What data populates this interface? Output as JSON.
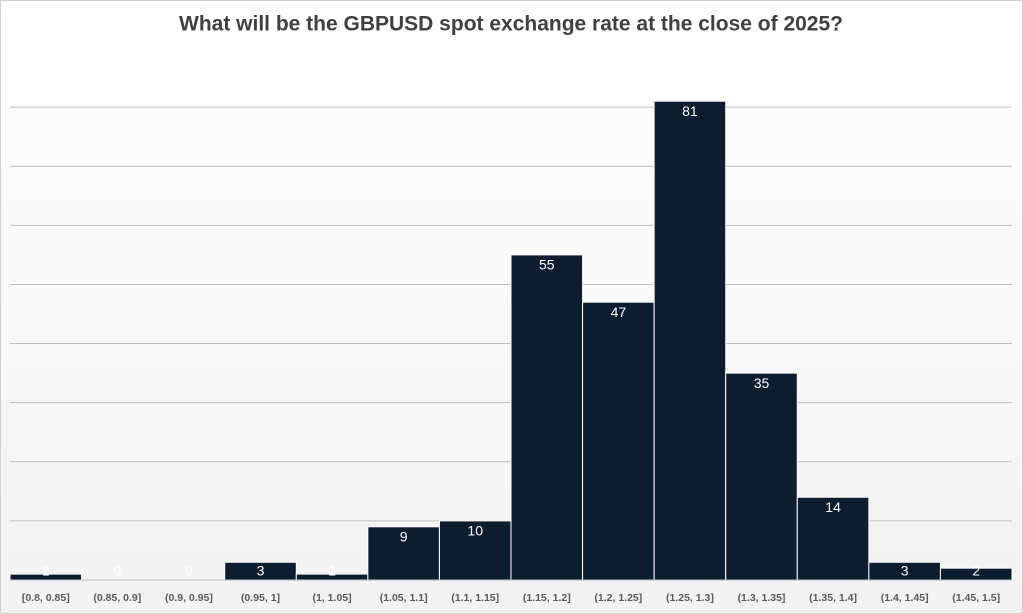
{
  "chart_data": {
    "type": "bar",
    "title": "What will be the GBPUSD spot exchange rate at the close of 2025?",
    "categories": [
      "[0.8, 0.85]",
      "(0.85, 0.9]",
      "(0.9, 0.95]",
      "(0.95, 1]",
      "(1, 1.05]",
      "(1.05, 1.1]",
      "(1.1, 1.15]",
      "(1.15, 1.2]",
      "(1.2, 1.25]",
      "(1.25, 1.3]",
      "(1.3, 1.35]",
      "(1.35, 1.4]",
      "(1.4, 1.45]",
      "(1.45, 1.5]"
    ],
    "values": [
      1,
      0,
      0,
      3,
      1,
      9,
      10,
      55,
      47,
      81,
      35,
      14,
      3,
      2
    ],
    "color": "#0e1c30",
    "ylim": [
      0,
      90
    ],
    "yticks": [
      0,
      10,
      20,
      30,
      40,
      50,
      60,
      70,
      80
    ],
    "grid": true
  }
}
